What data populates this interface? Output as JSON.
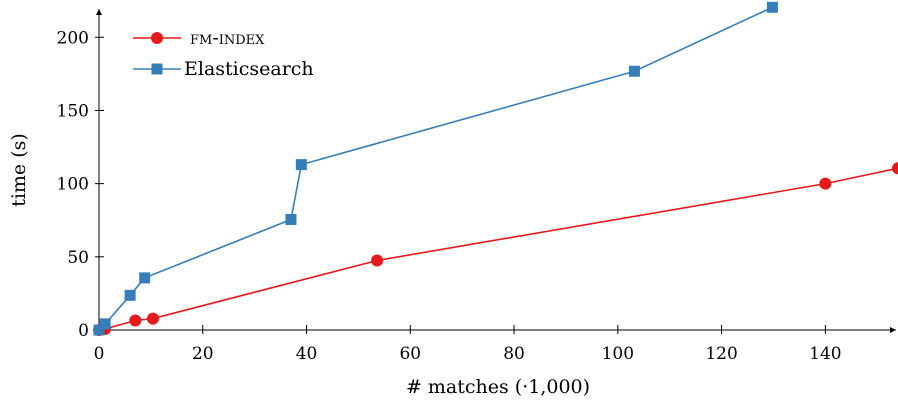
{
  "chart_data": {
    "type": "line",
    "title": "",
    "xlabel": "# matches (·1,000)",
    "ylabel": "time (s)",
    "xlim": [
      0,
      154
    ],
    "ylim": [
      0,
      220
    ],
    "xticks": [
      0,
      20,
      40,
      60,
      80,
      100,
      120,
      140
    ],
    "yticks": [
      0,
      50,
      100,
      150,
      200
    ],
    "xtick_labels": [
      "0",
      "20",
      "40",
      "60",
      "80",
      "100",
      "120",
      "140"
    ],
    "ytick_labels": [
      "0",
      "50",
      "100",
      "150",
      "200"
    ],
    "grid": false,
    "legend_position": "top-left",
    "series": [
      {
        "name": "fm-index",
        "color": "#e41a1c",
        "marker": "circle",
        "x": [
          0,
          0.4,
          1.2,
          7,
          10.4,
          53.6,
          140,
          154
        ],
        "y": [
          0,
          0.3,
          0.8,
          6.5,
          7.8,
          47.5,
          100,
          110.5
        ]
      },
      {
        "name": "Elasticsearch",
        "color": "#377eb8",
        "marker": "square",
        "x": [
          0,
          1.2,
          6,
          8.8,
          37,
          39,
          103.2,
          129.8
        ],
        "y": [
          0,
          4.2,
          23.7,
          35.6,
          75.5,
          113,
          176.8,
          220.5
        ]
      }
    ]
  }
}
